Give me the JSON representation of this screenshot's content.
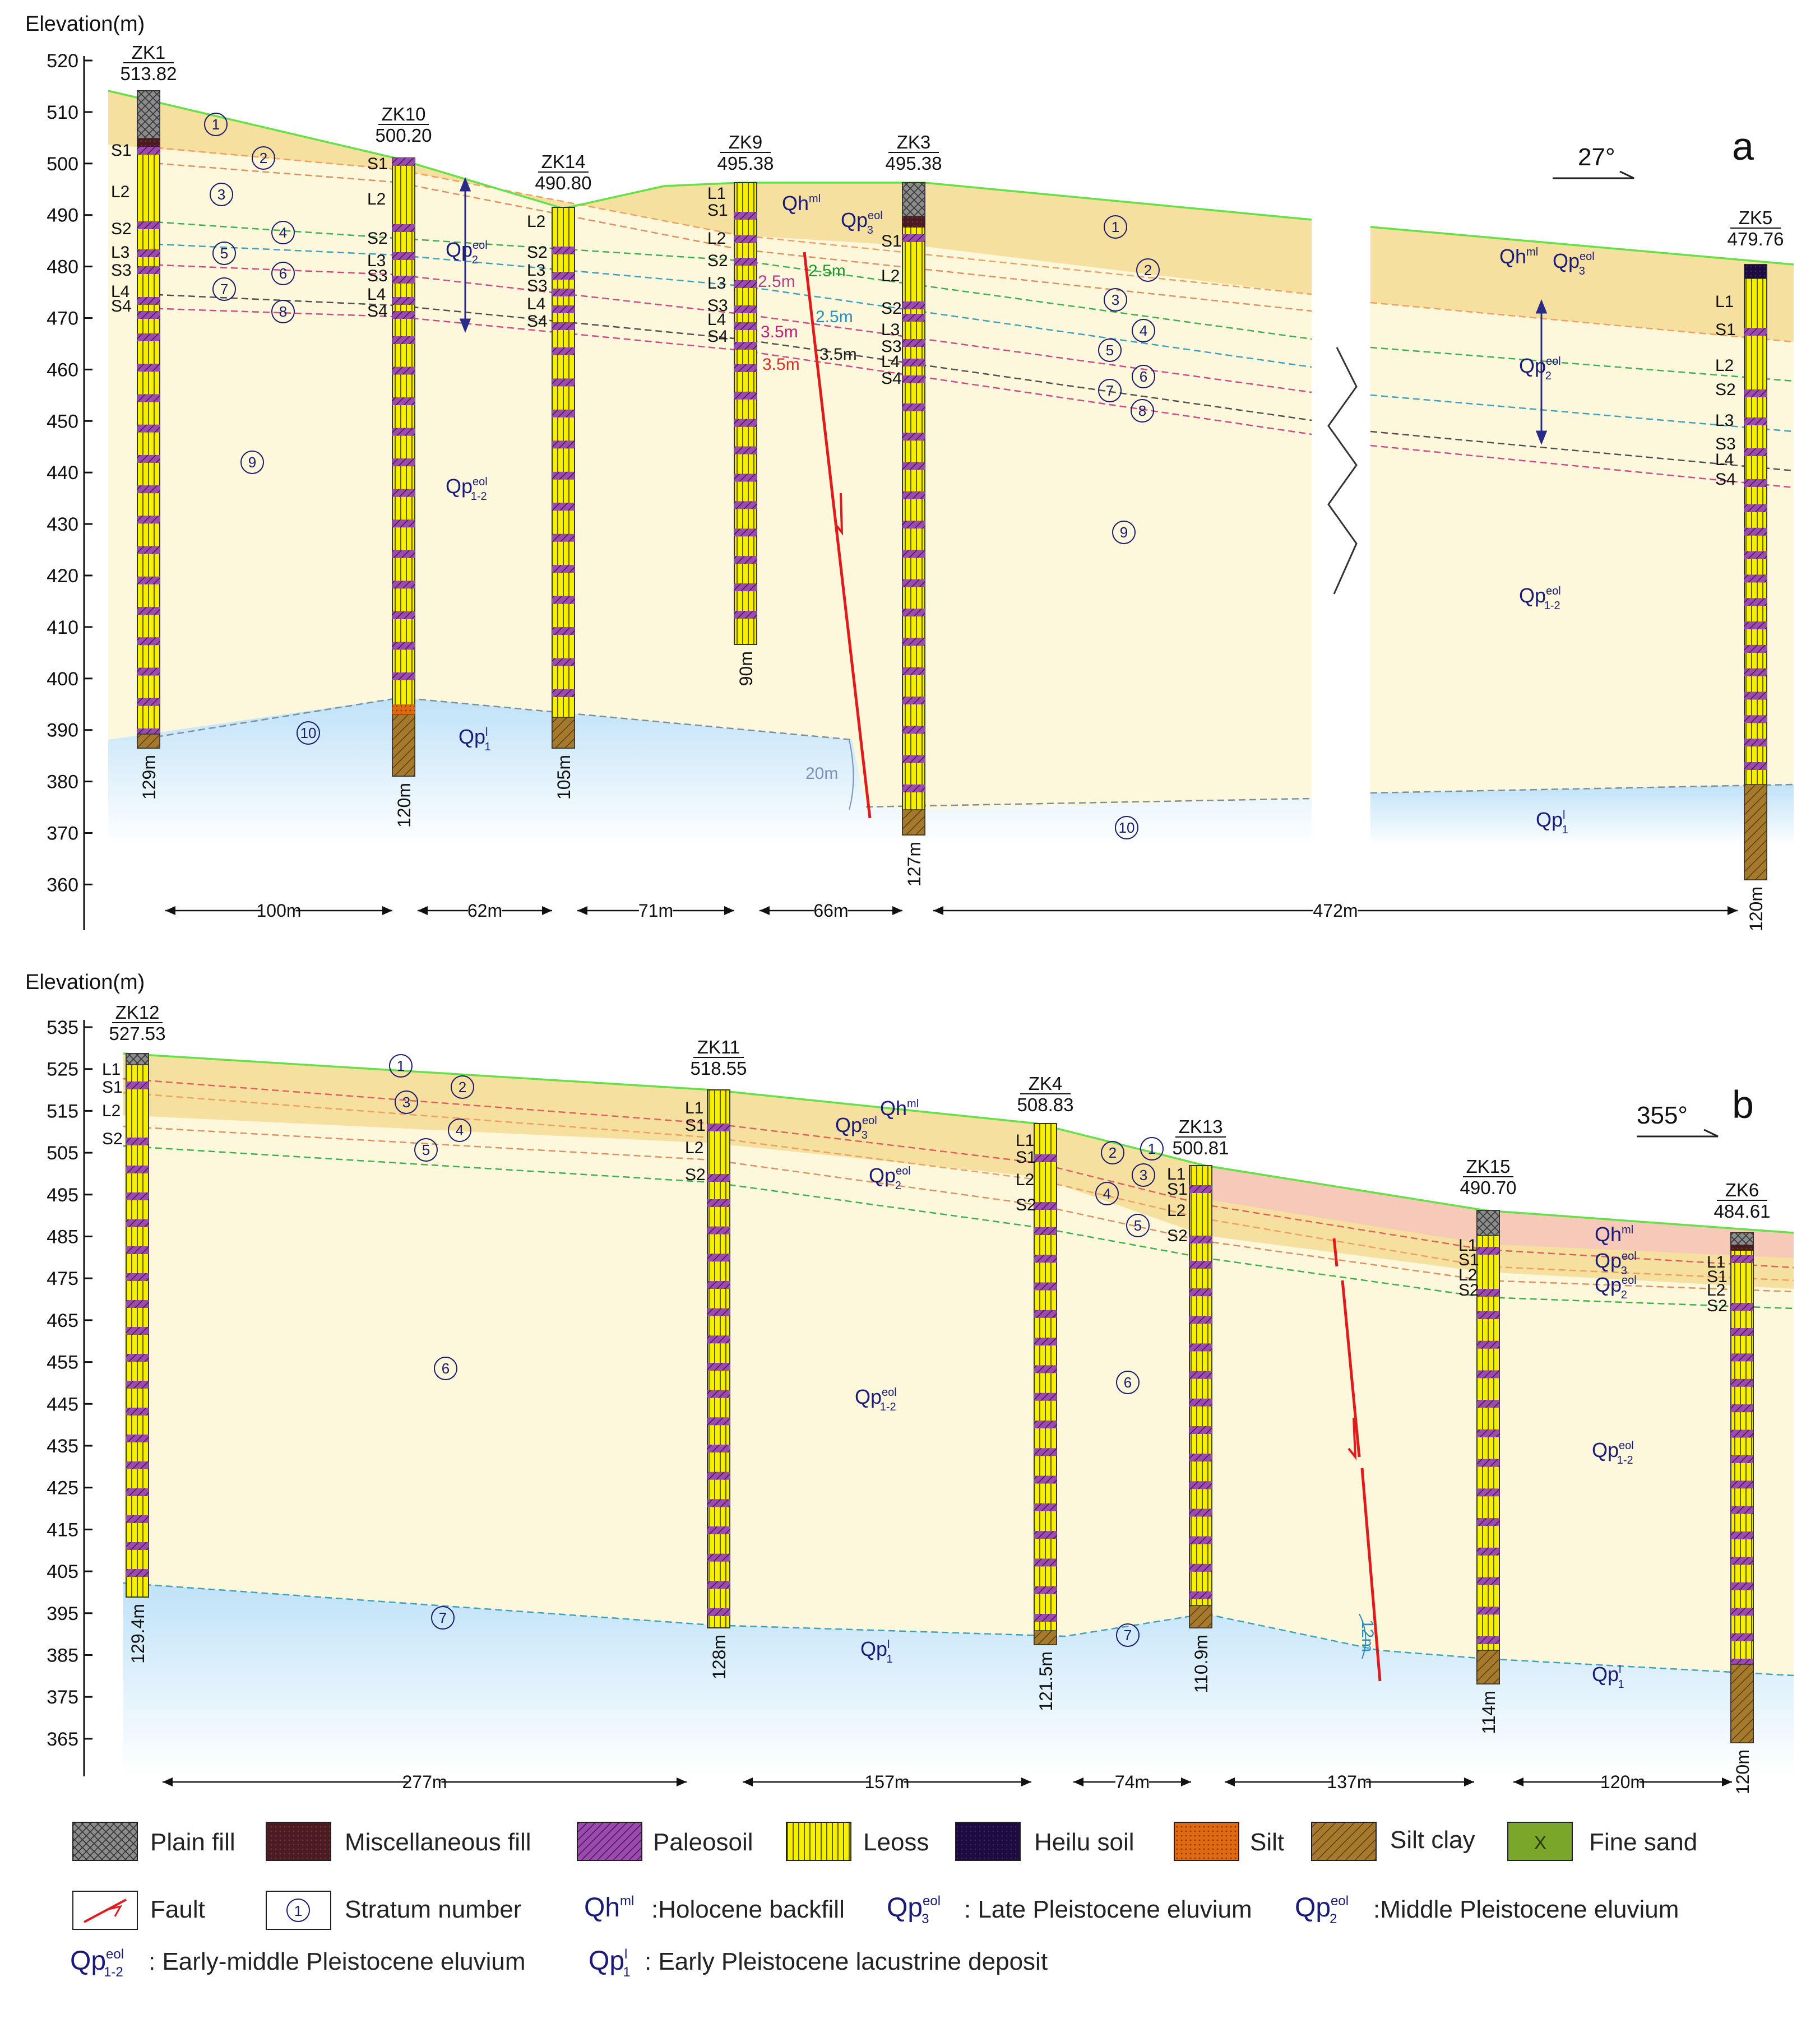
{
  "axis_label": "Elevation(m)",
  "panel_a": {
    "tag": "a",
    "azimuth": "27°",
    "y_ticks": [
      "520",
      "510",
      "500",
      "490",
      "480",
      "470",
      "460",
      "450",
      "440",
      "430",
      "420",
      "410",
      "400",
      "390",
      "380",
      "370",
      "360"
    ],
    "boreholes": [
      {
        "name": "ZK1",
        "elev": "513.82",
        "depth": "129m"
      },
      {
        "name": "ZK10",
        "elev": "500.20",
        "depth": "120m"
      },
      {
        "name": "ZK14",
        "elev": "490.80",
        "depth": "105m"
      },
      {
        "name": "ZK9",
        "elev": "495.38",
        "depth": "90m"
      },
      {
        "name": "ZK3",
        "elev": "495.38",
        "depth": "127m"
      },
      {
        "name": "ZK5",
        "elev": "479.76",
        "depth": "120m"
      }
    ],
    "spacings": [
      "100m",
      "62m",
      "71m",
      "66m",
      "472m"
    ],
    "fault_offsets": [
      "2.5m",
      "2.5m",
      "2.5m",
      "3.5m",
      "3.5m",
      "3.5m",
      "20m"
    ],
    "strata_labels": [
      "L1",
      "S1",
      "L2",
      "S2",
      "L3",
      "S3",
      "L4",
      "S4"
    ],
    "stratum_numbers": [
      "1",
      "2",
      "3",
      "4",
      "5",
      "6",
      "7",
      "8",
      "9",
      "10"
    ],
    "units": {
      "qh_ml": "Qh",
      "qp3": "Qp",
      "qp2": "Qp",
      "qp12": "Qp",
      "qp1": "Qp",
      "sup_ml": "ml",
      "sup_eol": "eol",
      "sub_3": "3",
      "sub_2": "2",
      "sub_12": "1-2",
      "sub_1": "1",
      "sup_l": "l"
    }
  },
  "panel_b": {
    "tag": "b",
    "azimuth": "355°",
    "y_ticks": [
      "535",
      "525",
      "515",
      "505",
      "495",
      "485",
      "475",
      "465",
      "455",
      "445",
      "435",
      "425",
      "415",
      "405",
      "395",
      "385",
      "375",
      "365"
    ],
    "boreholes": [
      {
        "name": "ZK12",
        "elev": "527.53",
        "depth": "129.4m"
      },
      {
        "name": "ZK11",
        "elev": "518.55",
        "depth": "128m"
      },
      {
        "name": "ZK4",
        "elev": "508.83",
        "depth": "121.5m"
      },
      {
        "name": "ZK13",
        "elev": "500.81",
        "depth": "110.9m"
      },
      {
        "name": "ZK15",
        "elev": "490.70",
        "depth": "114m"
      },
      {
        "name": "ZK6",
        "elev": "484.61",
        "depth": "120m"
      }
    ],
    "spacings": [
      "277m",
      "157m",
      "74m",
      "137m",
      "120m"
    ],
    "fault_offset": "12m",
    "strata_labels": [
      "L1",
      "S1",
      "L2",
      "S2"
    ],
    "stratum_numbers": [
      "1",
      "2",
      "3",
      "4",
      "5",
      "6",
      "7"
    ]
  },
  "legend": {
    "row1": [
      "Plain fill",
      "Miscellaneous fill",
      "Paleosoil",
      "Leoss",
      "Heilu soil",
      "Silt",
      "Silt clay",
      "Fine sand"
    ],
    "fault": "Fault",
    "stratum_number": "Stratum number",
    "stratum_symbol": "1",
    "holocene": "Holocene backfill",
    "late": "Late Pleistocene eluvium",
    "middle": "Middle Pleistocene eluvium",
    "early_middle": "Early-middle Pleistocene eluvium",
    "early": "Early Pleistocene lacustrine deposit",
    "fine_sand_mark": "X"
  },
  "colors": {
    "loess": "#f6f000",
    "paleosol": "#8a3aa0",
    "fill_top": "#f5dfa2",
    "fill_body": "#fdf8dc",
    "ground": "#66e04a",
    "fault": "#e01b1b",
    "pink": "#f6c9b8",
    "water": "#d4ecfa"
  }
}
